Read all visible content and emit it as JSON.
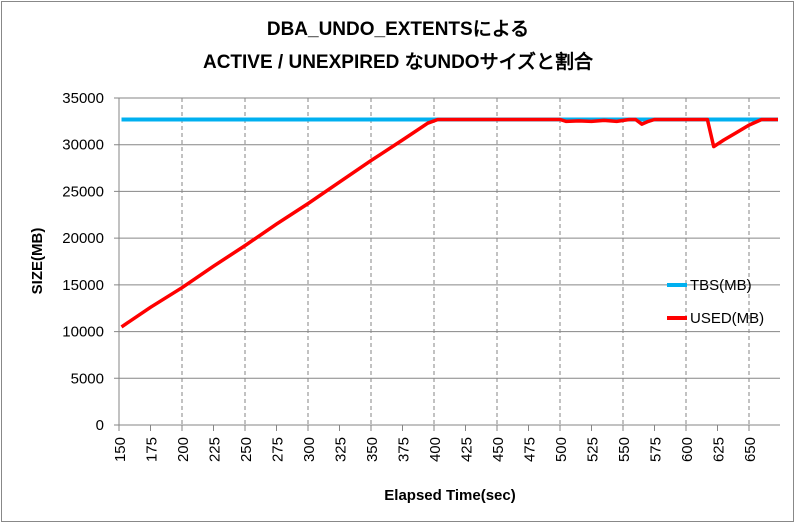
{
  "chart_data": {
    "type": "line",
    "title_lines": [
      "DBA_UNDO_EXTENTSによる",
      "ACTIVE / UNEXPIRED なUNDOサイズと割合"
    ],
    "xlabel": "Elapsed Time(sec)",
    "ylabel": "SIZE(MB)",
    "xlim": [
      150,
      673
    ],
    "ylim": [
      0,
      35000
    ],
    "x_ticks": [
      "150",
      "175",
      "200",
      "225",
      "250",
      "275",
      "300",
      "325",
      "350",
      "375",
      "400",
      "425",
      "450",
      "475",
      "500",
      "525",
      "550",
      "575",
      "600",
      "625",
      "650"
    ],
    "y_ticks": [
      "0",
      "5000",
      "10000",
      "15000",
      "20000",
      "25000",
      "30000",
      "35000"
    ],
    "grid": "horizontal solid, vertical dashed every 50",
    "legend_position": "right",
    "series": [
      {
        "name": "TBS(MB)",
        "color": "#00b0f0",
        "x": [
          152,
          673
        ],
        "y": [
          32700,
          32700
        ]
      },
      {
        "name": "USED(MB)",
        "color": "#ff0000",
        "x": [
          152,
          175,
          200,
          225,
          250,
          275,
          300,
          325,
          350,
          375,
          395,
          403,
          500,
          505,
          515,
          525,
          535,
          545,
          555,
          560,
          565,
          570,
          575,
          600,
          617,
          622,
          630,
          640,
          650,
          660,
          673
        ],
        "y": [
          10500,
          12600,
          14700,
          17000,
          19200,
          21500,
          23700,
          26000,
          28300,
          30500,
          32300,
          32700,
          32700,
          32500,
          32550,
          32500,
          32600,
          32500,
          32700,
          32700,
          32200,
          32500,
          32700,
          32700,
          32700,
          29800,
          30500,
          31300,
          32100,
          32700,
          32700
        ]
      }
    ]
  }
}
